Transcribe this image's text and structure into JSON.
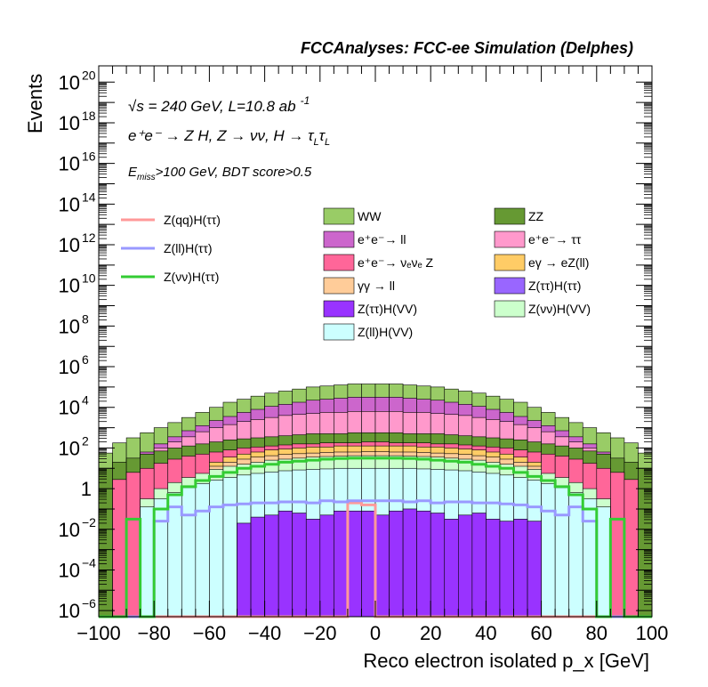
{
  "chart_data": {
    "type": "histogram",
    "title": "FCCAnalyses: FCC-ee Simulation (Delphes)",
    "xlabel": "Reco electron isolated p_x [GeV]",
    "ylabel": "Events",
    "xlim": [
      -100,
      100
    ],
    "ylim_log10": [
      -6.3,
      20.8
    ],
    "yscale": "log",
    "bin_width": 5,
    "x_ticks": [
      "−100",
      "−80",
      "−60",
      "−40",
      "−20",
      "0",
      "20",
      "40",
      "60",
      "80",
      "100"
    ],
    "y_tick_labels": [
      {
        "pow": -6,
        "base": "10",
        "exp": "−6"
      },
      {
        "pow": -4,
        "base": "10",
        "exp": "−4"
      },
      {
        "pow": -2,
        "base": "10",
        "exp": "−2"
      },
      {
        "pow": 0,
        "base": "1",
        "exp": ""
      },
      {
        "pow": 2,
        "base": "10",
        "exp": "2"
      },
      {
        "pow": 4,
        "base": "10",
        "exp": "4"
      },
      {
        "pow": 6,
        "base": "10",
        "exp": "6"
      },
      {
        "pow": 8,
        "base": "10",
        "exp": "8"
      },
      {
        "pow": 10,
        "base": "10",
        "exp": "10"
      },
      {
        "pow": 12,
        "base": "10",
        "exp": "12"
      },
      {
        "pow": 14,
        "base": "10",
        "exp": "14"
      },
      {
        "pow": 16,
        "base": "10",
        "exp": "16"
      },
      {
        "pow": 18,
        "base": "10",
        "exp": "18"
      },
      {
        "pow": 20,
        "base": "10",
        "exp": "20"
      }
    ],
    "annotations": {
      "line1": "√s = 240 GeV, L=10.8 ab",
      "line1_sup": "-1",
      "line2": "e⁺e⁻ → Z H, Z → νν, H → τ",
      "line2_sub1": "L",
      "line2_mid": "τ",
      "line2_sub2": "L",
      "line3_pre": "E",
      "line3_sub": "miss",
      "line3_post": ">100 GeV, BDT score>0.5"
    },
    "stacked_series": [
      {
        "name": "WW",
        "color": "#99cc66",
        "top_log10": [
          1.75,
          2.25,
          2.5,
          2.75,
          3.0,
          3.25,
          3.5,
          3.75,
          4.0,
          4.25,
          4.4,
          4.55,
          4.7,
          4.8,
          4.9,
          5.0,
          5.05,
          5.1,
          5.15,
          5.15,
          5.15,
          5.15,
          5.1,
          5.05,
          5.0,
          4.9,
          4.8,
          4.7,
          4.55,
          4.4,
          4.25,
          4.0,
          3.75,
          3.5,
          3.25,
          3.0,
          2.75,
          2.5,
          2.25,
          1.75
        ]
      },
      {
        "name": "e⁺e⁻→ ll",
        "color": "#cc66cc",
        "top_log10": [
          null,
          1.0,
          1.4,
          1.8,
          2.2,
          2.55,
          2.85,
          3.1,
          3.35,
          3.55,
          3.75,
          3.9,
          4.05,
          4.15,
          4.25,
          4.35,
          4.4,
          4.45,
          4.5,
          4.5,
          4.5,
          4.5,
          4.45,
          4.4,
          4.35,
          4.25,
          4.15,
          4.05,
          3.9,
          3.75,
          3.55,
          3.35,
          3.1,
          2.85,
          2.55,
          2.2,
          1.8,
          1.4,
          1.0,
          null
        ]
      },
      {
        "name": "e⁺e⁻→ ττ",
        "color": "#ff99cc",
        "top_log10": [
          null,
          0.9,
          1.3,
          1.7,
          2.0,
          2.3,
          2.55,
          2.8,
          3.0,
          3.15,
          3.3,
          3.4,
          3.5,
          3.6,
          3.65,
          3.7,
          3.75,
          3.75,
          3.8,
          3.8,
          3.8,
          3.8,
          3.75,
          3.75,
          3.7,
          3.65,
          3.6,
          3.5,
          3.4,
          3.3,
          3.15,
          3.0,
          2.8,
          2.55,
          2.3,
          2.0,
          1.7,
          1.3,
          0.9,
          null
        ]
      },
      {
        "name": "ZZ",
        "color": "#669933",
        "top_log10": [
          1.0,
          1.3,
          1.5,
          1.7,
          1.85,
          2.0,
          2.1,
          2.2,
          2.3,
          2.4,
          2.45,
          2.5,
          2.55,
          2.6,
          2.65,
          2.7,
          2.7,
          2.7,
          2.75,
          2.75,
          2.75,
          2.75,
          2.7,
          2.7,
          2.7,
          2.65,
          2.6,
          2.55,
          2.5,
          2.45,
          2.4,
          2.3,
          2.2,
          2.1,
          2.0,
          1.85,
          1.7,
          1.5,
          1.3,
          1.0
        ]
      },
      {
        "name": "e⁺e⁻→ νₑνₑ Z",
        "color": "#ff6699",
        "top_log10": [
          null,
          0.45,
          0.8,
          1.0,
          1.25,
          1.45,
          1.6,
          1.7,
          1.8,
          1.9,
          2.0,
          2.05,
          2.1,
          2.15,
          2.2,
          2.2,
          2.25,
          2.25,
          2.25,
          2.3,
          2.3,
          2.25,
          2.25,
          2.25,
          2.2,
          2.2,
          2.15,
          2.1,
          2.05,
          2.0,
          1.9,
          1.8,
          1.7,
          1.6,
          1.45,
          1.25,
          1.0,
          0.8,
          0.45,
          null
        ]
      },
      {
        "name": "eγ → eZ(ll)",
        "color": "#ffcc66",
        "top_log10": [
          null,
          null,
          null,
          null,
          null,
          null,
          null,
          null,
          1.3,
          1.55,
          1.7,
          1.8,
          1.9,
          1.95,
          2.0,
          2.05,
          2.05,
          2.1,
          2.1,
          2.1,
          2.1,
          2.1,
          2.1,
          2.05,
          2.05,
          2.0,
          1.95,
          1.9,
          1.8,
          1.7,
          1.55,
          1.3,
          null,
          null,
          null,
          null,
          null,
          null,
          null,
          null
        ]
      },
      {
        "name": "γγ → ll",
        "color": "#ffcc99",
        "top_log10": [
          null,
          null,
          null,
          null,
          null,
          null,
          null,
          null,
          1.1,
          1.3,
          1.45,
          1.55,
          1.62,
          1.68,
          1.72,
          1.75,
          1.78,
          1.8,
          1.8,
          1.82,
          1.82,
          1.8,
          1.8,
          1.78,
          1.75,
          1.72,
          1.68,
          1.62,
          1.55,
          1.45,
          1.3,
          1.1,
          null,
          null,
          null,
          null,
          null,
          null,
          null,
          null
        ]
      },
      {
        "name": "Z(νν)H(VV)",
        "color": "#ccffcc",
        "top_log10": [
          null,
          null,
          null,
          -0.5,
          0.0,
          0.3,
          0.55,
          0.75,
          0.95,
          1.1,
          1.2,
          1.3,
          1.4,
          1.45,
          1.5,
          1.55,
          1.58,
          1.6,
          1.62,
          1.62,
          1.62,
          1.62,
          1.6,
          1.58,
          1.55,
          1.5,
          1.45,
          1.4,
          1.3,
          1.2,
          1.1,
          0.95,
          0.75,
          0.55,
          0.3,
          0.0,
          -0.5,
          null,
          null,
          null
        ]
      },
      {
        "name": "Z(ll)H(VV)",
        "color": "#ccffff",
        "top_log10": [
          null,
          null,
          null,
          -0.9,
          -0.5,
          -0.2,
          0.05,
          0.25,
          0.42,
          0.55,
          0.67,
          0.75,
          0.82,
          0.88,
          0.92,
          0.95,
          0.97,
          1.0,
          1.0,
          1.0,
          1.0,
          1.0,
          1.0,
          0.97,
          0.95,
          0.92,
          0.88,
          0.82,
          0.75,
          0.67,
          0.55,
          0.42,
          0.25,
          0.05,
          -0.2,
          -0.5,
          -0.9,
          null,
          null,
          null
        ]
      },
      {
        "name": "Z(ττ)H(VV)",
        "color": "#9933ff",
        "top_log10": [
          null,
          null,
          null,
          null,
          null,
          null,
          null,
          null,
          null,
          null,
          -1.7,
          -1.4,
          -1.3,
          -1.1,
          -1.2,
          -1.5,
          -1.3,
          -1.1,
          -1.1,
          -1.1,
          -1.3,
          -1.1,
          -1.0,
          -1.1,
          -1.2,
          -1.5,
          -1.3,
          -1.2,
          -1.5,
          -1.6,
          -1.5,
          -1.6,
          null,
          null,
          null,
          null,
          null,
          null,
          null,
          null
        ]
      },
      {
        "name": "Z(ττ)H(ττ)",
        "color": "#9966ff",
        "top_log10": []
      }
    ],
    "line_series": [
      {
        "name": "Z(qq)H(ττ)",
        "color": "#ff9999",
        "top_log10": [
          null,
          null,
          null,
          null,
          null,
          null,
          null,
          null,
          null,
          null,
          null,
          null,
          null,
          null,
          null,
          null,
          null,
          null,
          -0.7,
          -0.8,
          null,
          null,
          null,
          null,
          null,
          null,
          null,
          null,
          null,
          null,
          null,
          null,
          null,
          null,
          null,
          null,
          null,
          null,
          null,
          null
        ]
      },
      {
        "name": "Z(ll)H(ττ)",
        "color": "#9999ff",
        "top_log10": [
          null,
          null,
          null,
          null,
          -1.6,
          -0.9,
          -1.3,
          -1.1,
          -0.9,
          -0.8,
          -0.75,
          -0.7,
          -0.7,
          -0.65,
          -0.65,
          -0.7,
          -0.6,
          -0.65,
          -0.6,
          -0.6,
          -0.6,
          -0.6,
          -0.65,
          -0.6,
          -0.7,
          -0.65,
          -0.65,
          -0.7,
          -0.7,
          -0.75,
          -0.8,
          -0.9,
          -1.1,
          -1.3,
          -0.9,
          -1.6,
          null,
          null,
          null,
          null
        ]
      },
      {
        "name": "Z(νν)H(ττ)",
        "color": "#33cc33",
        "top_log10": [
          null,
          null,
          -1.5,
          null,
          -1.0,
          -0.3,
          0.1,
          0.4,
          0.6,
          0.8,
          1.0,
          1.1,
          1.2,
          1.3,
          1.35,
          1.4,
          1.45,
          1.48,
          1.5,
          1.5,
          1.5,
          1.5,
          1.48,
          1.45,
          1.4,
          1.35,
          1.3,
          1.2,
          1.1,
          1.0,
          0.8,
          0.6,
          0.4,
          0.1,
          -0.3,
          -1.0,
          null,
          -1.5,
          null,
          null
        ]
      }
    ]
  }
}
